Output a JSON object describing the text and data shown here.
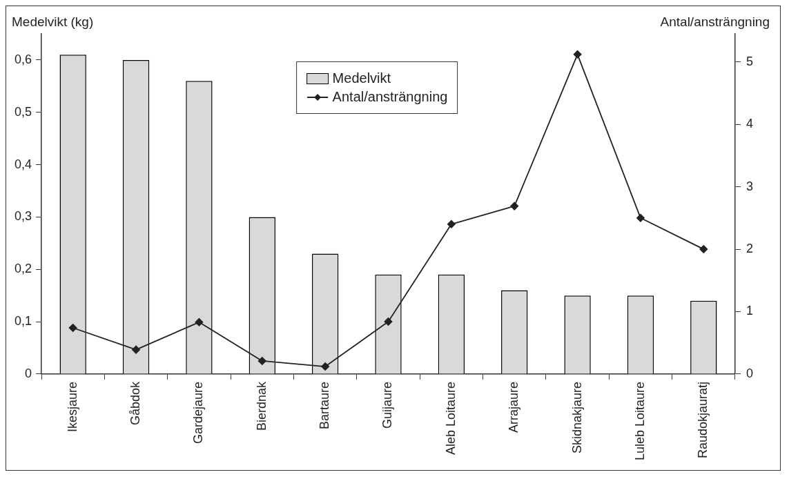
{
  "chart_data": {
    "type": "bar",
    "ylabel": "Medelvikt (kg)",
    "y2label": "Antal/ansträngning",
    "categories": [
      "Ikesjaure",
      "Gåbdok",
      "Gardejaure",
      "Bierdnak",
      "Bartaure",
      "Guijaure",
      "Aleb Loitaure",
      "Arrajaure",
      "Skidnakjaure",
      "Luleb Loitaure",
      "Raudokjauratj"
    ],
    "series": [
      {
        "name": "Medelvikt",
        "color": "#d9d9d9",
        "values": [
          0.61,
          0.6,
          0.56,
          0.3,
          0.23,
          0.19,
          0.19,
          0.16,
          0.15,
          0.15,
          0.14
        ]
      },
      {
        "name": "Antal/ansträngning",
        "type": "line",
        "axis": "y2",
        "color": "#222222",
        "marker": "diamond",
        "values": [
          0.74,
          0.39,
          0.83,
          0.21,
          0.12,
          0.84,
          2.4,
          2.69,
          5.12,
          2.5,
          2.0
        ]
      }
    ],
    "ylim": [
      0,
      0.65
    ],
    "yticks": [
      {
        "value": 0,
        "label": "0"
      },
      {
        "value": 0.1,
        "label": "0,1"
      },
      {
        "value": 0.2,
        "label": "0,2"
      },
      {
        "value": 0.3,
        "label": "0,3"
      },
      {
        "value": 0.4,
        "label": "0,4"
      },
      {
        "value": 0.5,
        "label": "0,5"
      },
      {
        "value": 0.6,
        "label": "0,6"
      }
    ],
    "y2lim": [
      0,
      5.45
    ],
    "y2ticks": [
      0,
      1,
      2,
      3,
      4,
      5
    ],
    "grid": false,
    "legend": "top"
  }
}
